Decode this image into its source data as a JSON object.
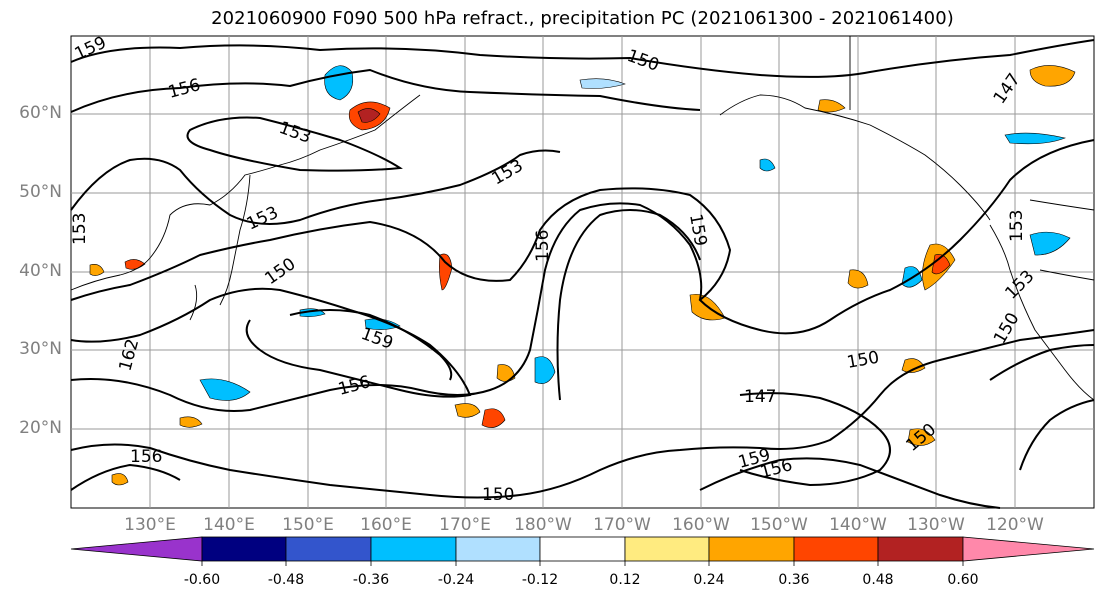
{
  "title": "2021060900 F090 500 hPa refract., precipitation PC (2021061300 - 2021061400)",
  "lat_labels": [
    "60°N",
    "50°N",
    "40°N",
    "30°N",
    "20°N"
  ],
  "lon_labels": [
    "130°E",
    "140°E",
    "150°E",
    "160°E",
    "170°E",
    "180°W",
    "170°W",
    "160°W",
    "150°W",
    "140°W",
    "130°W",
    "120°W"
  ],
  "contour_labels": [
    "159",
    "156",
    "153",
    "150",
    "147",
    "162",
    "153",
    "156",
    "159",
    "150",
    "153",
    "156",
    "150",
    "147",
    "153",
    "150",
    "159",
    "156",
    "150",
    "153",
    "156",
    "150",
    "159",
    "153"
  ],
  "colorbar": {
    "ticks": [
      "-0.60",
      "-0.48",
      "-0.36",
      "-0.24",
      "-0.12",
      "0.12",
      "0.24",
      "0.36",
      "0.48",
      "0.60"
    ],
    "colors": [
      "#9933cc",
      "#000080",
      "#3355cc",
      "#00bfff",
      "#b0e0ff",
      "#ffffff",
      "#ffeb80",
      "#ffa500",
      "#ff4500",
      "#b22222",
      "#ff88aa"
    ]
  },
  "colors": {
    "land_line": "#000000",
    "grid": "#9a9a9a",
    "label_gray": "#808080"
  }
}
